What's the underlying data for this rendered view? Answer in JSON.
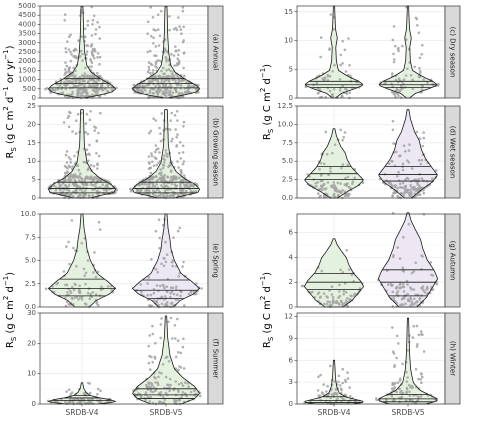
{
  "chart_data": {
    "type": "violin",
    "x_categories": [
      "SRDB-V4",
      "SRDB-V5"
    ],
    "panels": [
      {
        "label": "(a) Annual",
        "ylim": [
          0,
          5000
        ],
        "yticks": [
          0,
          500,
          1000,
          1500,
          2000,
          2500,
          3000,
          3500,
          4000,
          4500,
          5000
        ],
        "fill": "#e4f0dd",
        "dist_shape": "annual",
        "series": [
          {
            "name": "SRDB-V4",
            "q1": 550,
            "median": 780,
            "q3": 1050,
            "max": 4950,
            "n_points": 320
          },
          {
            "name": "SRDB-V5",
            "q1": 550,
            "median": 780,
            "q3": 1050,
            "max": 4950,
            "n_points": 340
          }
        ]
      },
      {
        "label": "(b) Growing season",
        "ylim": [
          0,
          25
        ],
        "yticks": [
          0,
          5,
          10,
          15,
          20,
          25
        ],
        "fill": "#e4f0dd",
        "dist_shape": "growing",
        "series": [
          {
            "name": "SRDB-V4",
            "q1": 1.4,
            "median": 2.6,
            "q3": 4.3,
            "max": 24,
            "n_points": 300
          },
          {
            "name": "SRDB-V5",
            "q1": 1.4,
            "median": 2.6,
            "q3": 4.3,
            "max": 24,
            "n_points": 320
          }
        ]
      },
      {
        "label": "(c) Dry season",
        "ylim": [
          0,
          16
        ],
        "yticks": [
          0,
          5,
          10,
          15
        ],
        "fill": "#e4f0dd",
        "dist_shape": "dry",
        "series": [
          {
            "name": "SRDB-V4",
            "q1": 1.8,
            "median": 2.3,
            "q3": 2.9,
            "max": 16,
            "n_points": 70
          },
          {
            "name": "SRDB-V5",
            "q1": 1.8,
            "median": 2.3,
            "q3": 2.9,
            "max": 16,
            "n_points": 80
          }
        ]
      },
      {
        "label": "(d) Wet season",
        "ylim": [
          0,
          12.5
        ],
        "yticks": [
          0.0,
          2.5,
          5.0,
          7.5,
          10.0,
          12.5
        ],
        "fill": "#e4f0dd",
        "dist_shape": "wet",
        "series": [
          {
            "name": "SRDB-V4",
            "q1": 2.5,
            "median": 3.3,
            "q3": 4.3,
            "max": 9.4,
            "n_points": 120,
            "fill": "#e4f0dd"
          },
          {
            "name": "SRDB-V5",
            "q1": 2.3,
            "median": 3.2,
            "q3": 4.3,
            "max": 12,
            "n_points": 150,
            "fill": "#ebe6f2"
          }
        ]
      },
      {
        "label": "(e) Spring",
        "ylim": [
          0,
          10
        ],
        "yticks": [
          0.0,
          2.5,
          5.0,
          7.5,
          10.0
        ],
        "fill": "#e4f0dd",
        "dist_shape": "spring",
        "series": [
          {
            "name": "SRDB-V4",
            "q1": 1.2,
            "median": 2.0,
            "q3": 3.0,
            "max": 10,
            "n_points": 90,
            "fill": "#e4f0dd"
          },
          {
            "name": "SRDB-V5",
            "q1": 0.9,
            "median": 1.8,
            "q3": 2.9,
            "max": 10,
            "n_points": 110,
            "fill": "#ebe6f2"
          }
        ]
      },
      {
        "label": "(f) Summer",
        "ylim": [
          0,
          30
        ],
        "yticks": [
          0,
          10,
          20,
          30
        ],
        "fill": "#e4f0dd",
        "dist_shape": "summer",
        "series": [
          {
            "name": "SRDB-V4",
            "q1": 1.2,
            "median": 2.0,
            "q3": 2.8,
            "max": 7,
            "n_points": 90
          },
          {
            "name": "SRDB-V5",
            "q1": 1.8,
            "median": 3.0,
            "q3": 5.0,
            "max": 29,
            "n_points": 150
          }
        ]
      },
      {
        "label": "(g) Autumn",
        "ylim": [
          0,
          7.5
        ],
        "yticks": [
          0,
          2,
          4,
          6
        ],
        "fill": "#e4f0dd",
        "dist_shape": "autumn",
        "series": [
          {
            "name": "SRDB-V4",
            "q1": 1.4,
            "median": 2.0,
            "q3": 2.7,
            "max": 5.5,
            "n_points": 80,
            "fill": "#e4f0dd"
          },
          {
            "name": "SRDB-V5",
            "q1": 0.9,
            "median": 2.0,
            "q3": 3.0,
            "max": 7.6,
            "n_points": 110,
            "fill": "#ebe6f2"
          }
        ]
      },
      {
        "label": "(h) Winter",
        "ylim": [
          0,
          12.5
        ],
        "yticks": [
          0,
          3,
          6,
          9,
          12
        ],
        "fill": "#e4f0dd",
        "dist_shape": "winter",
        "series": [
          {
            "name": "SRDB-V4",
            "q1": 0.2,
            "median": 0.5,
            "q3": 1.0,
            "max": 6,
            "n_points": 80
          },
          {
            "name": "SRDB-V5",
            "q1": 0.3,
            "median": 0.7,
            "q3": 1.3,
            "max": 11.8,
            "n_points": 110
          }
        ]
      }
    ],
    "y_labels": {
      "top_left": "R_S (g C m^2 d^-1 or yr^-1)",
      "other": "R_S (g C m^2 d^-1)"
    },
    "colors": {
      "points": "#a3a3a3",
      "outline": "#1a1a1a",
      "strip_bg": "#d9d9d9",
      "grid": "#ebebeb",
      "panel_border": "#333333"
    },
    "grid": true
  }
}
